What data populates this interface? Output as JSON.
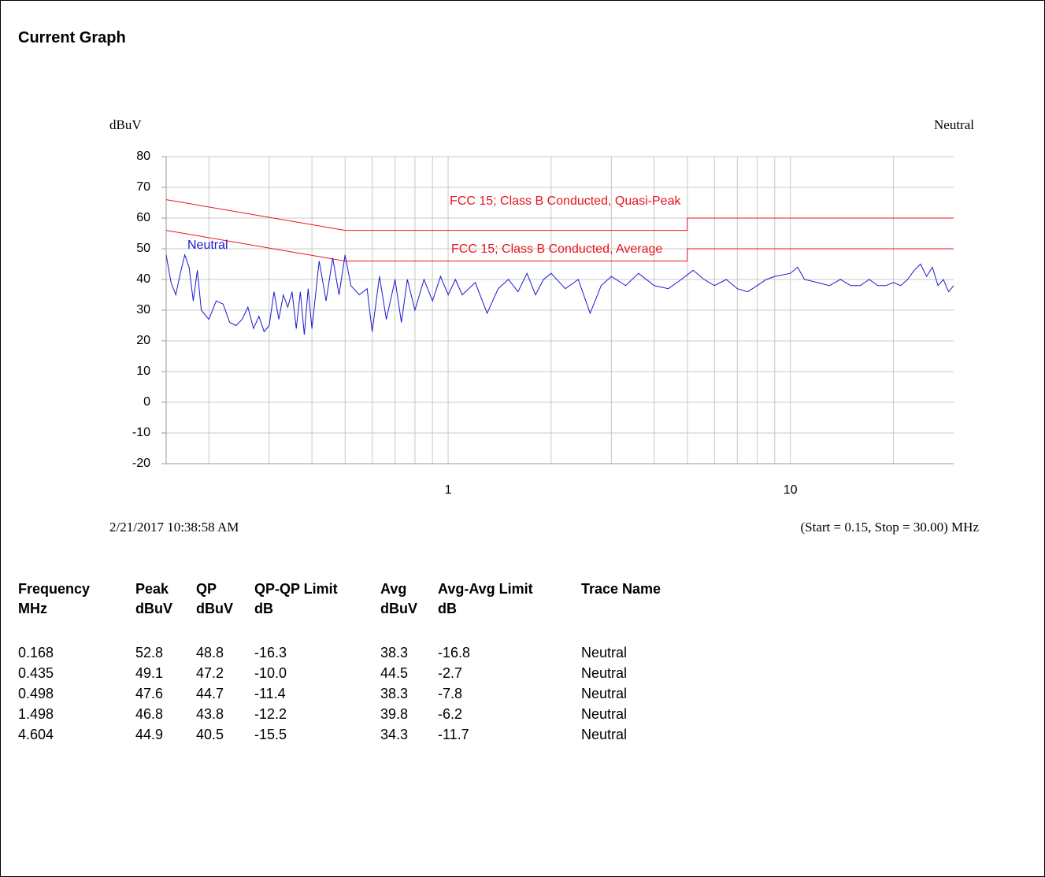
{
  "header": {
    "title": "Current Graph"
  },
  "chart_data": {
    "type": "line",
    "ylabel": "dBuV",
    "trace_title": "Neutral",
    "date": "2/21/2017 10:38:58 AM",
    "range_note": "(Start = 0.15, Stop = 30.00) MHz",
    "xscale": "log",
    "xlim": [
      0.15,
      30
    ],
    "ylim": [
      -20,
      80
    ],
    "xticks": [
      1,
      10
    ],
    "x_grid": [
      0.2,
      0.3,
      0.4,
      0.5,
      0.6,
      0.7,
      0.8,
      0.9,
      2,
      3,
      4,
      5,
      6,
      7,
      8,
      9,
      20
    ],
    "yticks": [
      -20,
      -10,
      0,
      10,
      20,
      30,
      40,
      50,
      60,
      70,
      80
    ],
    "grid": true,
    "series": [
      {
        "name": "FCC 15; Class B Conducted, Quasi-Peak",
        "color": "#e8141c",
        "x": [
          0.15,
          0.5,
          5,
          5,
          30
        ],
        "values": [
          66,
          56,
          56,
          60,
          60
        ]
      },
      {
        "name": "FCC 15; Class B Conducted, Average",
        "color": "#e8141c",
        "x": [
          0.15,
          0.5,
          5,
          5,
          30
        ],
        "values": [
          56,
          46,
          46,
          50,
          50
        ]
      },
      {
        "name": "Neutral",
        "color": "#1a1acc",
        "x": [
          0.15,
          0.155,
          0.16,
          0.165,
          0.17,
          0.175,
          0.18,
          0.185,
          0.19,
          0.2,
          0.21,
          0.22,
          0.23,
          0.24,
          0.25,
          0.26,
          0.27,
          0.28,
          0.29,
          0.3,
          0.31,
          0.32,
          0.33,
          0.34,
          0.35,
          0.36,
          0.37,
          0.38,
          0.39,
          0.4,
          0.42,
          0.44,
          0.46,
          0.48,
          0.5,
          0.52,
          0.55,
          0.58,
          0.6,
          0.63,
          0.66,
          0.7,
          0.73,
          0.76,
          0.8,
          0.85,
          0.9,
          0.95,
          1.0,
          1.05,
          1.1,
          1.2,
          1.3,
          1.4,
          1.5,
          1.6,
          1.7,
          1.8,
          1.9,
          2.0,
          2.2,
          2.4,
          2.6,
          2.8,
          3.0,
          3.3,
          3.6,
          4.0,
          4.4,
          4.8,
          5.2,
          5.6,
          6.0,
          6.5,
          7.0,
          7.5,
          8,
          8.5,
          9,
          10,
          10.5,
          11,
          12,
          13,
          14,
          15,
          16,
          17,
          18,
          19,
          20,
          21,
          22,
          23,
          24,
          25,
          26,
          27,
          28,
          29,
          30
        ],
        "values": [
          48,
          39,
          35,
          42,
          48,
          44,
          33,
          43,
          30,
          27,
          33,
          32,
          26,
          25,
          27,
          31,
          24,
          28,
          23,
          25,
          36,
          27,
          35,
          31,
          36,
          24,
          36,
          22,
          37,
          24,
          46,
          33,
          47,
          35,
          48,
          38,
          35,
          37,
          23,
          41,
          27,
          40,
          26,
          40,
          30,
          40,
          33,
          41,
          35,
          40,
          35,
          39,
          29,
          37,
          40,
          36,
          42,
          35,
          40,
          42,
          37,
          40,
          29,
          38,
          41,
          38,
          42,
          38,
          37,
          40,
          43,
          40,
          38,
          40,
          37,
          36,
          38,
          40,
          41,
          42,
          44,
          40,
          39,
          38,
          40,
          38,
          38,
          40,
          38,
          38,
          39,
          38,
          40,
          43,
          45,
          41,
          44,
          38,
          40,
          36,
          38
        ]
      }
    ]
  },
  "table": {
    "columns": [
      {
        "name": "Frequency",
        "unit": "MHz"
      },
      {
        "name": "Peak",
        "unit": "dBuV"
      },
      {
        "name": "QP",
        "unit": "dBuV"
      },
      {
        "name": "QP-QP Limit",
        "unit": "dB"
      },
      {
        "name": "Avg",
        "unit": "dBuV"
      },
      {
        "name": "Avg-Avg Limit",
        "unit": "dB"
      },
      {
        "name": "Trace Name"
      }
    ],
    "rows": [
      [
        "0.168",
        "52.8",
        "48.8",
        "-16.3",
        "38.3",
        "-16.8",
        "Neutral"
      ],
      [
        "0.435",
        "49.1",
        "47.2",
        "-10.0",
        "44.5",
        "-2.7",
        "Neutral"
      ],
      [
        "0.498",
        "47.6",
        "44.7",
        "-11.4",
        "38.3",
        "-7.8",
        "Neutral"
      ],
      [
        "1.498",
        "46.8",
        "43.8",
        "-12.2",
        "39.8",
        "-6.2",
        "Neutral"
      ],
      [
        "4.604",
        "44.9",
        "40.5",
        "-15.5",
        "34.3",
        "-11.7",
        "Neutral"
      ]
    ]
  }
}
